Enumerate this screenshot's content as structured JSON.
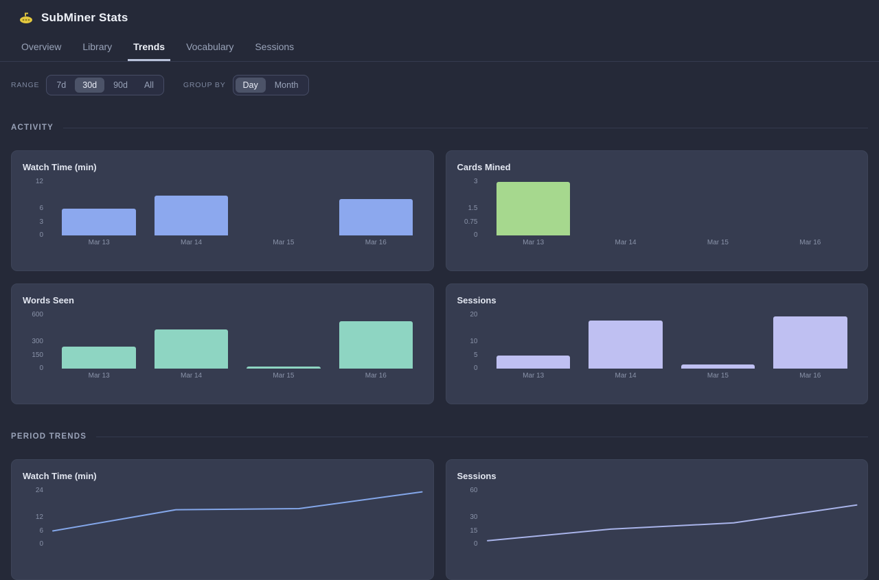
{
  "app": {
    "title": "SubMiner Stats",
    "logo_icon": "submarine-icon"
  },
  "nav": {
    "tabs": [
      {
        "label": "Overview",
        "active": false
      },
      {
        "label": "Library",
        "active": false
      },
      {
        "label": "Trends",
        "active": true
      },
      {
        "label": "Vocabulary",
        "active": false
      },
      {
        "label": "Sessions",
        "active": false
      }
    ]
  },
  "controls": {
    "range": {
      "label": "RANGE",
      "options": [
        {
          "label": "7d",
          "selected": false
        },
        {
          "label": "30d",
          "selected": true
        },
        {
          "label": "90d",
          "selected": false
        },
        {
          "label": "All",
          "selected": false
        }
      ]
    },
    "group_by": {
      "label": "GROUP BY",
      "options": [
        {
          "label": "Day",
          "selected": true
        },
        {
          "label": "Month",
          "selected": false
        }
      ]
    }
  },
  "sections": {
    "activity": "ACTIVITY",
    "period_trends": "PERIOD TRENDS"
  },
  "colors": {
    "background": "#252938",
    "card": "#363C50",
    "bar_blue": "#8CA8EE",
    "bar_green": "#A6D88E",
    "bar_teal": "#8ED5C2",
    "bar_lavender": "#BFC0F2",
    "line_blue": "#84A7EA",
    "line_lavender": "#A9B4EA"
  },
  "chart_data": [
    {
      "id": "activity-watch-time",
      "type": "bar",
      "title": "Watch Time (min)",
      "categories": [
        "Mar 13",
        "Mar 14",
        "Mar 15",
        "Mar 16"
      ],
      "values": [
        6,
        9,
        0,
        8.2
      ],
      "yticks": [
        12,
        6,
        3,
        0
      ],
      "ymax": 12,
      "color": "#8CA8EE"
    },
    {
      "id": "activity-cards-mined",
      "type": "bar",
      "title": "Cards Mined",
      "categories": [
        "Mar 13",
        "Mar 14",
        "Mar 15",
        "Mar 16"
      ],
      "values": [
        3,
        0,
        0,
        0
      ],
      "yticks": [
        3,
        1.5,
        0.75,
        0
      ],
      "ymax": 3,
      "color": "#A6D88E"
    },
    {
      "id": "activity-words-seen",
      "type": "bar",
      "title": "Words Seen",
      "categories": [
        "Mar 13",
        "Mar 14",
        "Mar 15",
        "Mar 16"
      ],
      "values": [
        250,
        440,
        25,
        530
      ],
      "yticks": [
        600,
        300,
        150,
        0
      ],
      "ymax": 600,
      "color": "#8ED5C2"
    },
    {
      "id": "activity-sessions",
      "type": "bar",
      "title": "Sessions",
      "categories": [
        "Mar 13",
        "Mar 14",
        "Mar 15",
        "Mar 16"
      ],
      "values": [
        5,
        18,
        1.5,
        19.5
      ],
      "yticks": [
        20,
        10,
        5,
        0
      ],
      "ymax": 20,
      "color": "#BFC0F2"
    },
    {
      "id": "trend-watch-time",
      "type": "line",
      "title": "Watch Time (min)",
      "categories": [],
      "values": [
        6,
        15.5,
        16,
        23.5
      ],
      "yticks": [
        24,
        12,
        6,
        0
      ],
      "ymax": 24,
      "color": "#84A7EA"
    },
    {
      "id": "trend-sessions",
      "type": "line",
      "title": "Sessions",
      "categories": [],
      "values": [
        4,
        17,
        24,
        44
      ],
      "yticks": [
        60,
        30,
        15,
        0
      ],
      "ymax": 60,
      "color": "#A9B4EA"
    }
  ]
}
